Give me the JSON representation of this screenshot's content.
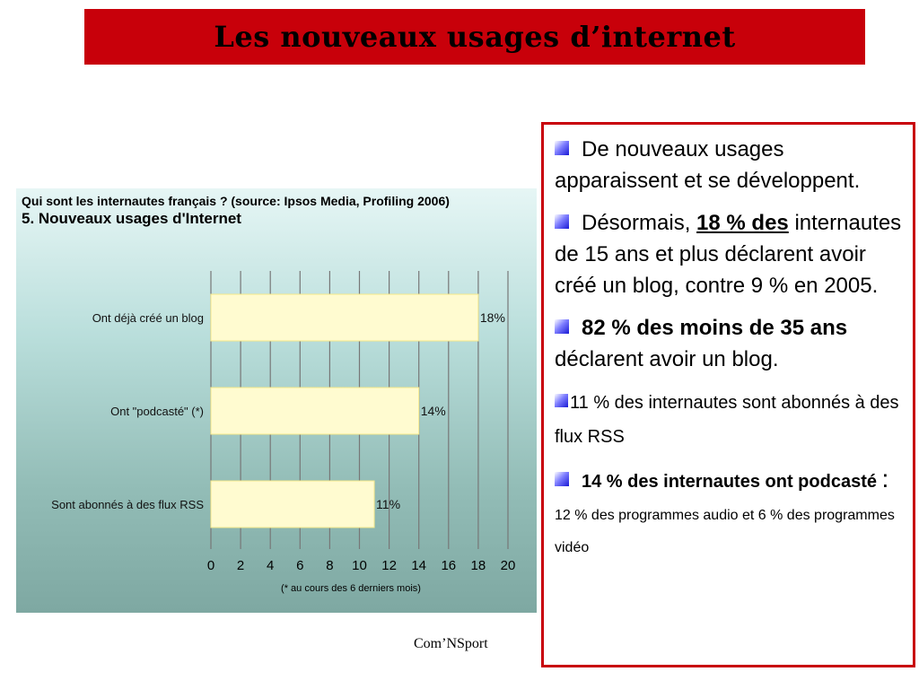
{
  "slide": {
    "title": "Les nouveaux usages d’internet",
    "credit": "Com’NSport"
  },
  "chart_data": {
    "type": "bar",
    "orientation": "horizontal",
    "title": "Qui sont les internautes français ? (source: Ipsos Media, Profiling 2006)",
    "subtitle": "5. Nouveaux usages d'Internet",
    "categories": [
      "Ont déjà créé un blog",
      "Ont \"podcasté\" (*)",
      "Sont abonnés à des flux RSS"
    ],
    "values": [
      18,
      14,
      11
    ],
    "value_labels": [
      "18%",
      "14%",
      "11%"
    ],
    "xlim": [
      0,
      20
    ],
    "ticks": [
      "0",
      "2",
      "4",
      "6",
      "8",
      "10",
      "12",
      "14",
      "16",
      "18",
      "20"
    ],
    "footnote": "(* au cours des 6 derniers mois)",
    "grid": "vertical",
    "colors": {
      "bar": "#fffbd0",
      "bar_edge": "#f5e88a",
      "grid": "#777777",
      "title": "#000000"
    }
  },
  "bullets": {
    "p1_text": "De nouveaux usages apparaissent et se développent",
    "p1_end": ".",
    "p2_start": "Désormais,",
    "p2_highlight": "18 % des",
    "p2_mid": "internautes de 15 ans et plus déclarent avoir créé un blog",
    "p2_comma": ",",
    "p2_end": "contre 9 % en 2005.",
    "p3_bold": "82 % des moins de 35 ans",
    "p3_rest": "déclarent avoir un blog.",
    "p4_text": "11 % des internautes sont abonnés à des flux RSS",
    "p5_bold": "14 % des internautes ont podcasté",
    "p5_colon": ":",
    "p5_small": "12 % des programmes audio et 6 % des programmes vidéo"
  }
}
